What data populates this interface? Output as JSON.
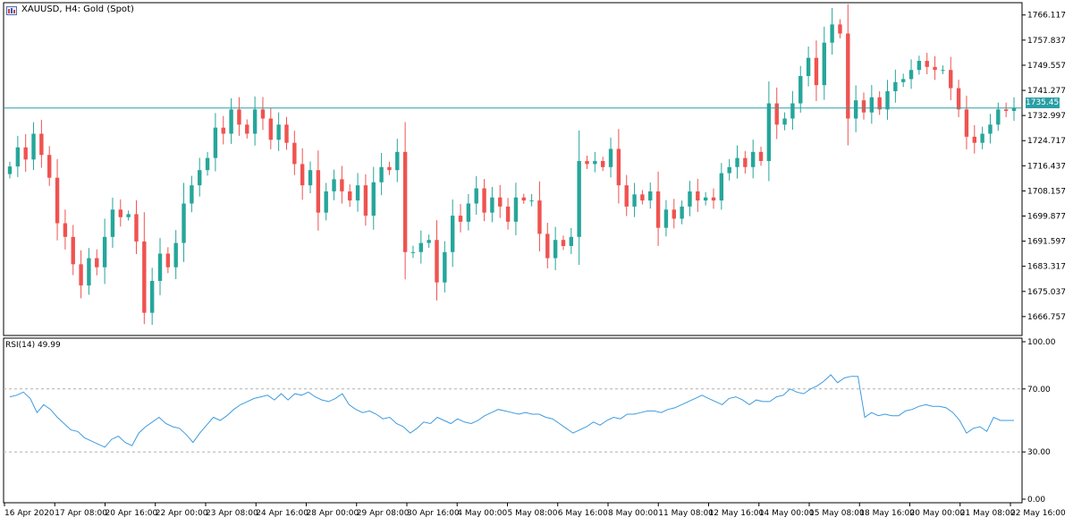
{
  "header": {
    "symbol": "XAUUSD",
    "timeframe": "H4",
    "description": "Gold (Spot)",
    "label": "XAUUSD, H4:  Gold (Spot)",
    "icon": "chart-window-icon"
  },
  "current_price_label": "1735.450",
  "indicator": {
    "label": "RSI(14) 49.99"
  },
  "colors": {
    "bull": "#26a69a",
    "bear": "#ef5350",
    "rsi_line": "#3d9be0",
    "price_line": "#2a9fa5",
    "frame": "#000000",
    "grid_dash": "#b0b0b0"
  },
  "chart_data": [
    {
      "type": "candlestick",
      "title": "XAUUSD, H4:  Gold (Spot)",
      "ylim": [
        1662.3,
        1768.4
      ],
      "y_ticks": [
        "1766.117",
        "1757.837",
        "1749.557",
        "1741.277",
        "1732.997",
        "1724.717",
        "1716.437",
        "1708.157",
        "1699.877",
        "1691.597",
        "1683.317",
        "1675.037",
        "1666.757"
      ],
      "y_tick_values": [
        1766.117,
        1757.837,
        1749.557,
        1741.277,
        1732.997,
        1724.717,
        1716.437,
        1708.157,
        1699.877,
        1691.597,
        1683.317,
        1675.037,
        1666.757
      ],
      "current_price": 1735.45,
      "x_labels": [
        "16 Apr 2020",
        "17 Apr 08:00",
        "20 Apr 16:00",
        "22 Apr 00:00",
        "23 Apr 08:00",
        "24 Apr 16:00",
        "28 Apr 00:00",
        "29 Apr 08:00",
        "30 Apr 16:00",
        "4 May 00:00",
        "5 May 08:00",
        "6 May 16:00",
        "8 May 00:00",
        "11 May 08:00",
        "12 May 16:00",
        "14 May 00:00",
        "15 May 08:00",
        "18 May 16:00",
        "20 May 00:00",
        "21 May 08:00",
        "22 May 16:00"
      ],
      "close": [
        1716.2,
        1722.5,
        1718.5,
        1727.0,
        1720.0,
        1712.5,
        1697.5,
        1693.0,
        1684.0,
        1677.0,
        1686.0,
        1683.0,
        1693.0,
        1702.0,
        1699.5,
        1700.5,
        1691.5,
        1668.0,
        1678.5,
        1687.5,
        1683.0,
        1691.0,
        1704.0,
        1710.0,
        1715.0,
        1719.0,
        1729.0,
        1727.0,
        1735.0,
        1730.0,
        1727.0,
        1735.0,
        1732.0,
        1725.0,
        1730.0,
        1724.0,
        1717.0,
        1710.0,
        1715.0,
        1701.0,
        1708.0,
        1712.0,
        1708.0,
        1705.0,
        1710.0,
        1700.0,
        1711.0,
        1716.0,
        1715.0,
        1721.0,
        1688.0,
        1688.0,
        1691.0,
        1692.0,
        1678.0,
        1688.0,
        1700.0,
        1698.0,
        1704.0,
        1709.0,
        1701.0,
        1706.0,
        1703.0,
        1698.0,
        1706.0,
        1705.0,
        1705.0,
        1694.0,
        1686.0,
        1692.0,
        1690.0,
        1693.0,
        1718.0,
        1717.0,
        1718.0,
        1716.0,
        1722.0,
        1710.0,
        1703.0,
        1707.0,
        1705.0,
        1708.0,
        1696.0,
        1702.0,
        1699.0,
        1703.0,
        1708.0,
        1705.0,
        1706.0,
        1705.0,
        1714.0,
        1716.0,
        1719.0,
        1716.0,
        1721.0,
        1718.0,
        1737.0,
        1730.0,
        1732.0,
        1737.0,
        1746.0,
        1752.0,
        1743.0,
        1757.0,
        1763.0,
        1760.0,
        1732.0,
        1738.0,
        1734.0,
        1739.0,
        1735.0,
        1741.0,
        1744.0,
        1745.0,
        1748.0,
        1751.0,
        1749.0,
        1748.0,
        1748.0,
        1742.0,
        1735.0,
        1726.0,
        1724.0,
        1727.0,
        1730.0,
        1735.0,
        1734.5,
        1735.45
      ],
      "highlight_highs": {
        "max": 1768.4,
        "min_low": 1664.3
      }
    },
    {
      "type": "line",
      "title": "RSI(14) 49.99",
      "ylim": [
        0,
        100
      ],
      "y_ticks": [
        "100.00",
        "70.00",
        "30.00",
        "0.00"
      ],
      "y_tick_values": [
        100,
        70,
        30,
        0
      ],
      "levels": [
        70,
        30
      ],
      "values": [
        65,
        66,
        68,
        64,
        55,
        60,
        57,
        52,
        48,
        44,
        43,
        39,
        37,
        35,
        33,
        38,
        40,
        36,
        34,
        42,
        46,
        49,
        52,
        48,
        46,
        45,
        41,
        36,
        42,
        47,
        52,
        50,
        53,
        57,
        60,
        62,
        64,
        65,
        66,
        63,
        67,
        63,
        67,
        66,
        68,
        65,
        63,
        62,
        64,
        67,
        60,
        57,
        55,
        56,
        54,
        51,
        52,
        48,
        46,
        42,
        45,
        49,
        48,
        52,
        50,
        48,
        51,
        49,
        48,
        50,
        53,
        55,
        57,
        56,
        55,
        54,
        55,
        54,
        54,
        52,
        51,
        48,
        45,
        42,
        44,
        46,
        49,
        47,
        50,
        52,
        51,
        54,
        54,
        55,
        56,
        56,
        55,
        57,
        58,
        60,
        62,
        64,
        66,
        64,
        62,
        60,
        64,
        65,
        63,
        60,
        63,
        62,
        62,
        65,
        66,
        70,
        68,
        67,
        70,
        72,
        75,
        79,
        74,
        77,
        78,
        78,
        52,
        55,
        53,
        54,
        53,
        53,
        56,
        57,
        59,
        60,
        59,
        59,
        58,
        55,
        50,
        42,
        45,
        46,
        43,
        52,
        50,
        50,
        49.99
      ]
    }
  ]
}
